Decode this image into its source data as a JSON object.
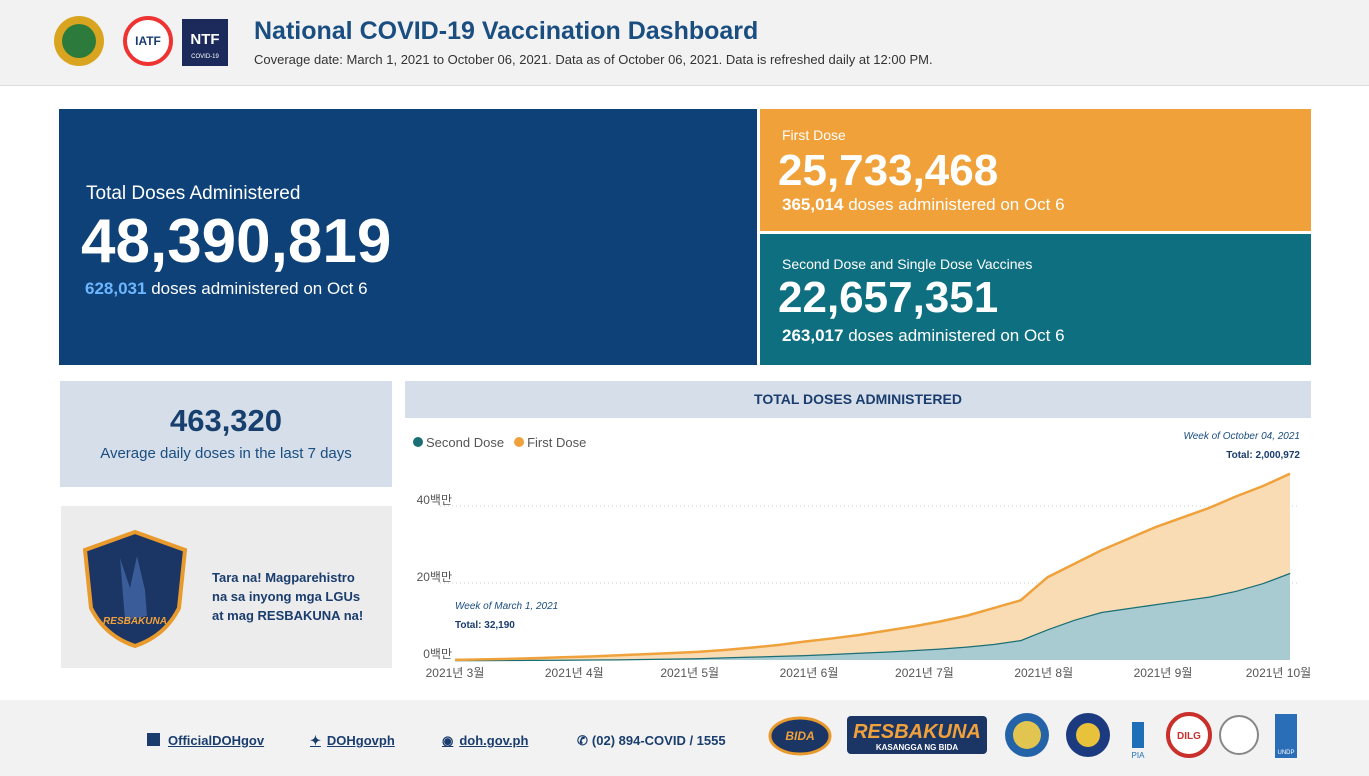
{
  "header": {
    "title": "National COVID-19 Vaccination Dashboard",
    "subtitle": "Coverage date: March 1, 2021 to October 06, 2021. Data as of October 06, 2021. Data is refreshed daily at 12:00 PM.",
    "logos": [
      "IATF",
      "NTF",
      "COVID-19"
    ]
  },
  "cards": {
    "total": {
      "label": "Total Doses Administered",
      "value": "48,390,819",
      "daily": "628,031",
      "daily_text": "doses administered on Oct 6"
    },
    "first": {
      "label": "First Dose",
      "value": "25,733,468",
      "daily": "365,014",
      "daily_text": "doses administered on Oct 6"
    },
    "second": {
      "label": "Second Dose and Single Dose Vaccines",
      "value": "22,657,351",
      "daily": "263,017",
      "daily_text": "doses administered on Oct 6"
    },
    "average": {
      "value": "463,320",
      "label": "Average daily doses in the last 7 days"
    }
  },
  "promo": {
    "lines": [
      "Tara na! Magparehistro",
      "na sa inyong mga LGUs",
      "at mag RESBAKUNA na!"
    ],
    "badge": "RESBAKUNA"
  },
  "chart_data": {
    "type": "area",
    "stacked": true,
    "title": "TOTAL DOSES ADMINISTERED",
    "x": [
      "2021-03-01",
      "2021-03-08",
      "2021-03-15",
      "2021-03-22",
      "2021-03-29",
      "2021-04-05",
      "2021-04-12",
      "2021-04-19",
      "2021-04-26",
      "2021-05-03",
      "2021-05-10",
      "2021-05-17",
      "2021-05-24",
      "2021-05-31",
      "2021-06-07",
      "2021-06-14",
      "2021-06-21",
      "2021-06-28",
      "2021-07-05",
      "2021-07-12",
      "2021-07-19",
      "2021-07-26",
      "2021-08-02",
      "2021-08-09",
      "2021-08-16",
      "2021-08-23",
      "2021-08-30",
      "2021-09-06",
      "2021-09-13",
      "2021-09-20",
      "2021-09-27",
      "2021-10-04"
    ],
    "series": [
      {
        "name": "Second Dose",
        "color": "#1b6e75",
        "fill": "#a8cbd1",
        "values": [
          0,
          10000,
          30000,
          60000,
          100000,
          150000,
          200000,
          300000,
          400000,
          500000,
          700000,
          900000,
          1100000,
          1300000,
          1600000,
          1900000,
          2200000,
          2600000,
          3000000,
          3500000,
          4200000,
          5200000,
          8000000,
          10500000,
          12500000,
          13500000,
          14500000,
          15500000,
          16500000,
          18000000,
          20000000,
          22657351
        ]
      },
      {
        "name": "First Dose",
        "color": "#efa23c",
        "fill": "#f9dcb4",
        "values": [
          32190,
          140000,
          270000,
          440000,
          600000,
          750000,
          1000000,
          1200000,
          1400000,
          1600000,
          1900000,
          2300000,
          2800000,
          3500000,
          4000000,
          4600000,
          5400000,
          6100000,
          7000000,
          8000000,
          9300000,
          10300000,
          13500000,
          14500000,
          16000000,
          18000000,
          20000000,
          21500000,
          23000000,
          24500000,
          25200000,
          25733468
        ]
      }
    ],
    "xlim": [
      "2021-03-01",
      "2021-10-04"
    ],
    "xticks": [
      {
        "value": "2021-03-01",
        "label": "2021년 3월"
      },
      {
        "value": "2021-04-01",
        "label": "2021년 4월"
      },
      {
        "value": "2021-05-01",
        "label": "2021년 5월"
      },
      {
        "value": "2021-06-01",
        "label": "2021년 6월"
      },
      {
        "value": "2021-07-01",
        "label": "2021년 7월"
      },
      {
        "value": "2021-08-01",
        "label": "2021년 8월"
      },
      {
        "value": "2021-09-01",
        "label": "2021년 9월"
      },
      {
        "value": "2021-10-01",
        "label": "2021년 10월"
      }
    ],
    "ylim": [
      0,
      50000000
    ],
    "yticks": [
      {
        "value": 0,
        "label": "0백만"
      },
      {
        "value": 20000000,
        "label": "20백만"
      },
      {
        "value": 40000000,
        "label": "40백만"
      }
    ],
    "grid": true,
    "legend": "top-left",
    "annotations": [
      {
        "title": "Week of March 1, 2021",
        "text": "Total: 32,190"
      },
      {
        "title": "Week of October 04, 2021",
        "text": "Total: 2,000,972"
      }
    ]
  },
  "footer": {
    "links": [
      "OfficialDOHgov",
      "DOHgovph",
      "doh.gov.ph",
      "(02) 894-COVID / 1555"
    ],
    "logos": [
      "BIDA",
      "RESBAKUNA",
      "KASANGGA NG BIDA",
      "PIA",
      "DILG",
      "UNDP"
    ]
  }
}
